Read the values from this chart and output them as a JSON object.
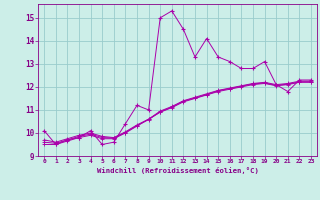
{
  "xlabel": "Windchill (Refroidissement éolien,°C)",
  "bg_color": "#cceee8",
  "grid_color": "#99cccc",
  "line_color": "#aa00aa",
  "xlim": [
    -0.5,
    23.5
  ],
  "ylim": [
    9,
    15.6
  ],
  "xticks": [
    0,
    1,
    2,
    3,
    4,
    5,
    6,
    7,
    8,
    9,
    10,
    11,
    12,
    13,
    14,
    15,
    16,
    17,
    18,
    19,
    20,
    21,
    22,
    23
  ],
  "yticks": [
    9,
    10,
    11,
    12,
    13,
    14,
    15
  ],
  "series1_x": [
    0,
    1,
    2,
    3,
    4,
    5,
    6,
    7,
    8,
    9,
    10,
    11,
    12,
    13,
    14,
    15,
    16,
    17,
    18,
    19,
    20,
    21,
    22,
    23
  ],
  "series1_y": [
    10.1,
    9.5,
    9.7,
    9.8,
    10.1,
    9.5,
    9.6,
    10.4,
    11.2,
    11.0,
    15.0,
    15.3,
    14.5,
    13.3,
    14.1,
    13.3,
    13.1,
    12.8,
    12.8,
    13.1,
    12.1,
    11.8,
    12.3,
    12.3
  ],
  "series2_x": [
    0,
    1,
    2,
    3,
    4,
    5,
    6,
    7,
    8,
    9,
    10,
    11,
    12,
    13,
    14,
    15,
    16,
    17,
    18,
    19,
    20,
    21,
    22,
    23
  ],
  "series2_y": [
    9.7,
    9.6,
    9.75,
    9.9,
    10.0,
    9.85,
    9.8,
    10.05,
    10.35,
    10.6,
    10.95,
    11.15,
    11.4,
    11.55,
    11.7,
    11.85,
    11.95,
    12.05,
    12.15,
    12.2,
    12.1,
    12.15,
    12.25,
    12.25
  ],
  "series3_x": [
    0,
    1,
    2,
    3,
    4,
    5,
    6,
    7,
    8,
    9,
    10,
    11,
    12,
    13,
    14,
    15,
    16,
    17,
    18,
    19,
    20,
    21,
    22,
    23
  ],
  "series3_y": [
    9.5,
    9.5,
    9.65,
    9.8,
    9.9,
    9.75,
    9.75,
    10.0,
    10.3,
    10.6,
    10.9,
    11.1,
    11.35,
    11.5,
    11.65,
    11.8,
    11.9,
    12.0,
    12.1,
    12.15,
    12.05,
    12.1,
    12.2,
    12.2
  ],
  "series4_x": [
    0,
    1,
    2,
    3,
    4,
    5,
    6,
    7,
    8,
    9,
    10,
    11,
    12,
    13,
    14,
    15,
    16,
    17,
    18,
    19,
    20,
    21,
    22,
    23
  ],
  "series4_y": [
    9.6,
    9.55,
    9.7,
    9.85,
    9.95,
    9.8,
    9.78,
    10.02,
    10.32,
    10.58,
    10.92,
    11.12,
    11.38,
    11.52,
    11.67,
    11.83,
    11.93,
    12.03,
    12.13,
    12.17,
    12.07,
    12.12,
    12.22,
    12.22
  ],
  "font_color": "#880088"
}
